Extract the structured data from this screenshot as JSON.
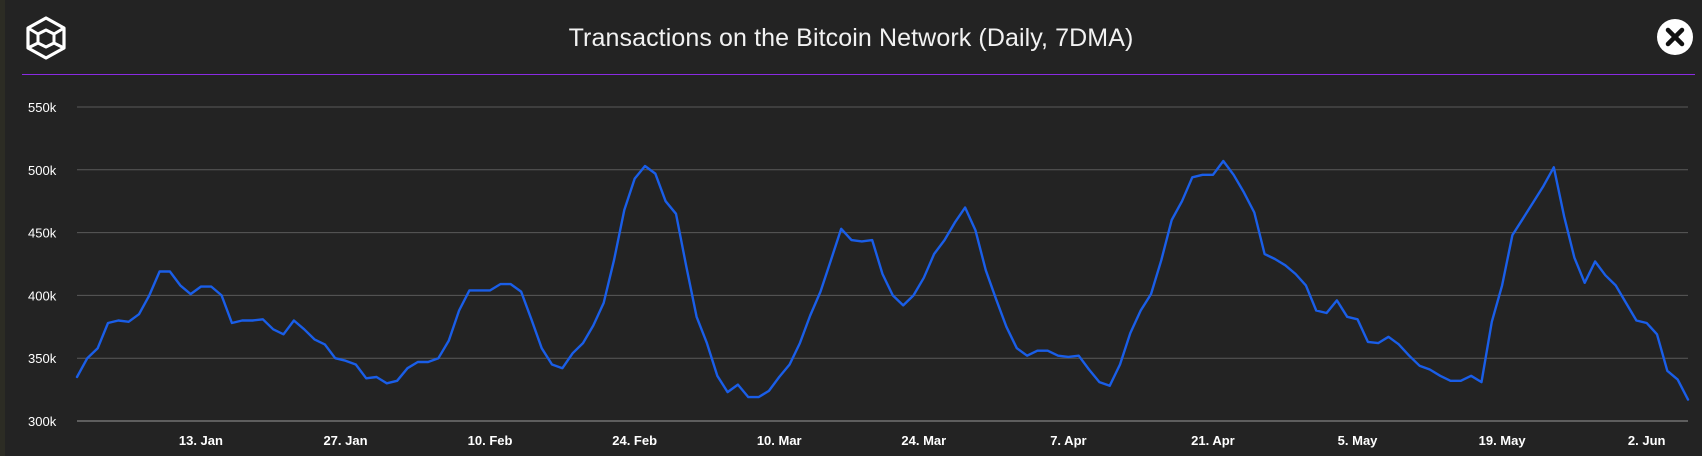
{
  "header": {
    "title": "Transactions on the Bitcoin Network (Daily, 7DMA)",
    "logo_icon": "cube-logo-icon",
    "close_icon": "close-icon"
  },
  "colors": {
    "background": "#232323",
    "line": "#1a5ee8",
    "divider": "#8a2be2",
    "grid": "#5a5a5a",
    "text": "#ffffff"
  },
  "chart_data": {
    "type": "line",
    "title": "Transactions on the Bitcoin Network (Daily, 7DMA)",
    "xlabel": "",
    "ylabel": "",
    "ylim": [
      300000,
      550000
    ],
    "ytick_labels": [
      "300k",
      "350k",
      "400k",
      "450k",
      "500k",
      "550k"
    ],
    "ytick_values": [
      300000,
      350000,
      400000,
      450000,
      500000,
      550000
    ],
    "xtick_labels": [
      "13. Jan",
      "27. Jan",
      "10. Feb",
      "24. Feb",
      "10. Mar",
      "24. Mar",
      "7. Apr",
      "21. Apr",
      "5. May",
      "19. May",
      "2. Jun"
    ],
    "xtick_dates": [
      "2019-01-13",
      "2019-01-27",
      "2019-02-10",
      "2019-02-24",
      "2019-03-10",
      "2019-03-24",
      "2019-04-07",
      "2019-04-21",
      "2019-05-05",
      "2019-05-19",
      "2019-06-02"
    ],
    "grid": "horizontal",
    "series": [
      {
        "x_start": "2019-01-01",
        "x_step_days": 1,
        "values": [
          335000,
          350000,
          358000,
          378000,
          380000,
          379000,
          385000,
          400000,
          419000,
          419000,
          408000,
          401000,
          407000,
          407000,
          400000,
          378000,
          380000,
          380000,
          381000,
          373000,
          369000,
          380000,
          373000,
          365000,
          361000,
          350000,
          348000,
          345000,
          334000,
          335000,
          330000,
          332000,
          342000,
          347000,
          347000,
          350000,
          364000,
          388000,
          404000,
          404000,
          404000,
          409000,
          409000,
          403000,
          381000,
          358000,
          345000,
          342000,
          354000,
          362000,
          376000,
          394000,
          428000,
          468000,
          493000,
          503000,
          497000,
          475000,
          465000,
          423000,
          383000,
          362000,
          336000,
          323000,
          329000,
          319000,
          319000,
          324000,
          335000,
          345000,
          362000,
          384000,
          403000,
          428000,
          453000,
          444000,
          443000,
          444000,
          417000,
          400000,
          392000,
          400000,
          414000,
          433000,
          444000,
          458000,
          470000,
          452000,
          420000,
          397000,
          375000,
          358000,
          352000,
          356000,
          356000,
          352000,
          351000,
          352000,
          341000,
          331000,
          328000,
          345000,
          370000,
          388000,
          401000,
          428000,
          460000,
          475000,
          494000,
          496000,
          496000,
          507000,
          496000,
          482000,
          466000,
          433000,
          429000,
          424000,
          417000,
          408000,
          388000,
          386000,
          396000,
          383000,
          381000,
          363000,
          362000,
          367000,
          361000,
          352000,
          344000,
          341000,
          336000,
          332000,
          332000,
          336000,
          331000,
          379000,
          408000,
          448000,
          461000,
          474000,
          487000,
          502000,
          463000,
          430000,
          410000,
          427000,
          416000,
          408000,
          394000,
          380000,
          378000,
          369000,
          340000,
          333000,
          317000
        ]
      }
    ]
  }
}
